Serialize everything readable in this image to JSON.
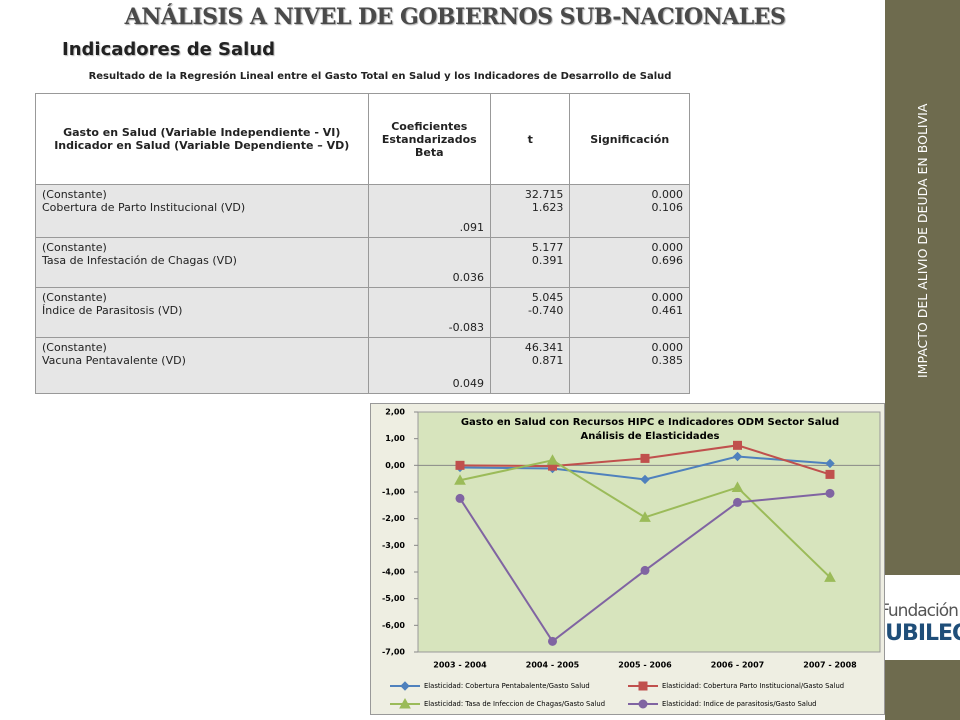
{
  "header": {
    "title": "ANÁLISIS A NIVEL DE GOBIERNOS SUB-NACIONALES",
    "subtitle": "Indicadores de Salud",
    "caption": "Resultado de la Regresión Lineal entre el Gasto Total en Salud y los Indicadores de Desarrollo de Salud"
  },
  "sidebar": {
    "text": "IMPACTO DEL ALIVIO DE DEUDA EN BOLIVIA"
  },
  "logo": {
    "line1": "Fundación",
    "line2": "JUBILEO"
  },
  "table": {
    "header": [
      "Gasto en Salud (Variable Independiente - VI) Indicador  en Salud (Variable Dependiente – VD)",
      "Coeficientes Estandarizados Beta",
      "t",
      "Significación"
    ],
    "rows": [
      {
        "labels": [
          "(Constante)",
          "Cobertura de Parto Institucional (VD)"
        ],
        "beta": ".091",
        "t": [
          "32.715",
          "1.623"
        ],
        "sig": [
          "0.000",
          "0.106"
        ]
      },
      {
        "labels": [
          "(Constante)",
          "Tasa de Infestación de Chagas (VD)"
        ],
        "beta": "0.036",
        "t": [
          "5.177",
          "0.391"
        ],
        "sig": [
          "0.000",
          "0.696"
        ]
      },
      {
        "labels": [
          "(Constante)",
          "Índice de Parasitosis (VD)"
        ],
        "beta": "-0.083",
        "t": [
          "5.045",
          "-0.740"
        ],
        "sig": [
          "0.000",
          "0.461"
        ]
      },
      {
        "labels": [
          "(Constante)",
          "Vacuna Pentavalente (VD)"
        ],
        "beta": "0.049",
        "t": [
          "46.341",
          "0.871"
        ],
        "sig": [
          "0.000",
          "0.385"
        ]
      }
    ]
  },
  "chart_data": {
    "type": "line",
    "title": [
      "Gasto en Salud con Recursos HIPC e Indicadores ODM Sector Salud",
      "Análisis de Elasticidades"
    ],
    "categories": [
      "2003 - 2004",
      "2004 - 2005",
      "2005 - 2006",
      "2006 - 2007",
      "2007 - 2008"
    ],
    "ylim": [
      -7,
      2
    ],
    "yticks": [
      {
        "value": 2,
        "label": "2,00"
      },
      {
        "value": 1,
        "label": "1,00"
      },
      {
        "value": 0,
        "label": "0,00"
      },
      {
        "value": -1,
        "label": "-1,00"
      },
      {
        "value": -2,
        "label": "-2,00"
      },
      {
        "value": -3,
        "label": "-3,00"
      },
      {
        "value": -4,
        "label": "-4,00"
      },
      {
        "value": -5,
        "label": "-5,00"
      },
      {
        "value": -6,
        "label": "-6,00"
      },
      {
        "value": -7,
        "label": "-7,00"
      }
    ],
    "series": [
      {
        "name": "Elasticidad: Cobertura Pentabalente/Gasto Salud",
        "color": "#4f81bd",
        "marker": "diamond",
        "values": [
          -0.08,
          -0.12,
          -0.53,
          0.33,
          0.07
        ]
      },
      {
        "name": "Elasticidad: Cobertura Parto Institucional/Gasto Salud",
        "color": "#c0504d",
        "marker": "square",
        "values": [
          0.0,
          -0.03,
          0.26,
          0.75,
          -0.34
        ]
      },
      {
        "name": "Elasticidad: Tasa de Infeccion de Chagas/Gasto Salud",
        "color": "#9bbb59",
        "marker": "triangle",
        "values": [
          -0.56,
          0.19,
          -1.95,
          -0.83,
          -4.2
        ]
      },
      {
        "name": "Elasticidad: Indice de parasitosis/Gasto Salud",
        "color": "#8064a2",
        "marker": "circle",
        "values": [
          -1.24,
          -6.6,
          -3.94,
          -1.39,
          -1.05
        ]
      }
    ]
  }
}
